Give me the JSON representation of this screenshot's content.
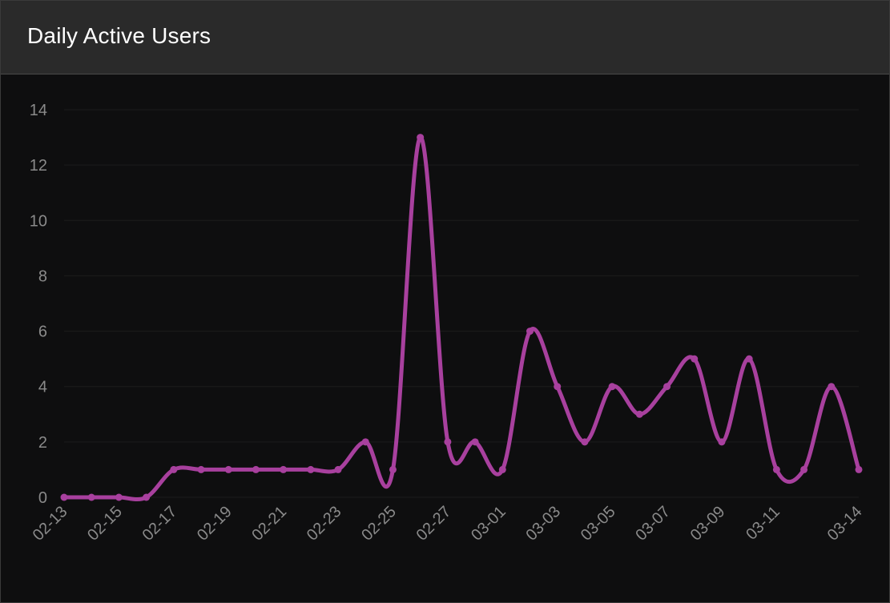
{
  "panel": {
    "title": "Daily Active Users"
  },
  "colors": {
    "background": "#0e0e0f",
    "header": "#2a2a2a",
    "line": "#a8409e",
    "tick_text": "#8a8a8a",
    "grid": "#1c1c1c"
  },
  "chart_data": {
    "type": "line",
    "title": "Daily Active Users",
    "xlabel": "",
    "ylabel": "",
    "ylim": [
      0,
      14
    ],
    "yticks": [
      0,
      2,
      4,
      6,
      8,
      10,
      12,
      14
    ],
    "categories": [
      "02-13",
      "02-14",
      "02-15",
      "02-16",
      "02-17",
      "02-18",
      "02-19",
      "02-20",
      "02-21",
      "02-22",
      "02-23",
      "02-24",
      "02-25",
      "02-26",
      "02-27",
      "02-28",
      "03-01",
      "03-02",
      "03-03",
      "03-04",
      "03-05",
      "03-06",
      "03-07",
      "03-08",
      "03-09",
      "03-10",
      "03-11",
      "03-12",
      "03-13",
      "03-14"
    ],
    "xtick_labels": [
      "02-13",
      "02-15",
      "02-17",
      "02-19",
      "02-21",
      "02-23",
      "02-25",
      "02-27",
      "03-01",
      "03-03",
      "03-05",
      "03-07",
      "03-09",
      "03-11",
      "03-14"
    ],
    "series": [
      {
        "name": "Daily Active Users",
        "values": [
          0,
          0,
          0,
          0,
          1,
          1,
          1,
          1,
          1,
          1,
          1,
          2,
          1,
          13,
          2,
          2,
          1,
          6,
          4,
          2,
          4,
          3,
          4,
          5,
          2,
          5,
          1,
          1,
          4,
          1
        ]
      }
    ]
  }
}
